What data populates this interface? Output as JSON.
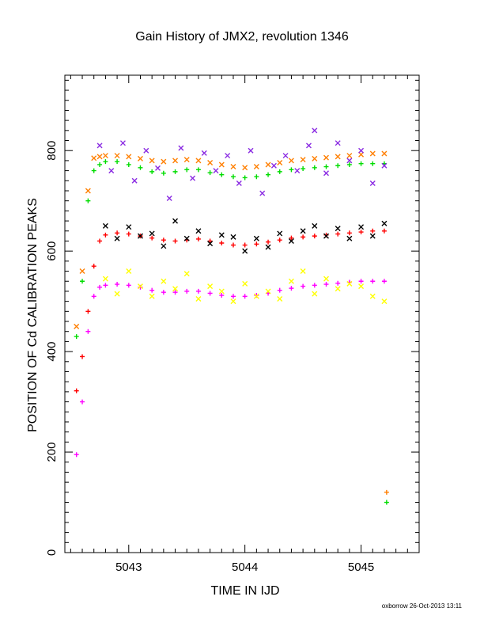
{
  "chart_data": {
    "type": "scatter",
    "title": "Gain History of JMX2, revolution 1346",
    "xlabel": "TIME IN IJD",
    "ylabel": "POSITION OF Cd CALIBRATION PEAKS",
    "xlim": [
      5042.45,
      5045.5
    ],
    "ylim": [
      0,
      950
    ],
    "xticks": [
      5043,
      5044,
      5045
    ],
    "yticks": [
      0,
      200,
      400,
      600,
      800
    ],
    "grid": false,
    "legend": "none",
    "series": [
      {
        "color": "#ff7f00",
        "marker": "x",
        "x": [
          5042.55,
          5042.6,
          5042.65,
          5042.7,
          5042.75,
          5042.8,
          5042.9,
          5043.0,
          5043.1,
          5043.2,
          5043.3,
          5043.4,
          5043.5,
          5043.6,
          5043.7,
          5043.8,
          5043.9,
          5044.0,
          5044.1,
          5044.2,
          5044.3,
          5044.4,
          5044.5,
          5044.6,
          5044.7,
          5044.8,
          5044.9,
          5045.0,
          5045.1,
          5045.2
        ],
        "values": [
          450,
          560,
          720,
          785,
          788,
          790,
          790,
          788,
          784,
          780,
          778,
          780,
          782,
          780,
          776,
          772,
          768,
          766,
          768,
          772,
          776,
          780,
          782,
          784,
          786,
          788,
          790,
          792,
          794,
          794
        ],
        "outliers": [
          {
            "x": 5045.22,
            "y": 120
          }
        ]
      },
      {
        "color": "#00dd00",
        "marker": "+",
        "x": [
          5042.55,
          5042.6,
          5042.65,
          5042.7,
          5042.75,
          5042.8,
          5042.9,
          5043.0,
          5043.1,
          5043.2,
          5043.3,
          5043.4,
          5043.5,
          5043.6,
          5043.7,
          5043.8,
          5043.9,
          5044.0,
          5044.1,
          5044.2,
          5044.3,
          5044.4,
          5044.5,
          5044.6,
          5044.7,
          5044.8,
          5044.9,
          5045.0,
          5045.1,
          5045.2
        ],
        "values": [
          430,
          540,
          700,
          760,
          772,
          778,
          778,
          772,
          766,
          758,
          755,
          758,
          762,
          762,
          756,
          752,
          748,
          746,
          748,
          752,
          758,
          762,
          764,
          766,
          768,
          770,
          772,
          774,
          774,
          774
        ],
        "outliers": [
          {
            "x": 5045.22,
            "y": 100
          }
        ]
      },
      {
        "color": "#ff0000",
        "marker": "+",
        "x": [
          5042.55,
          5042.6,
          5042.65,
          5042.7,
          5042.75,
          5042.8,
          5042.9,
          5043.0,
          5043.1,
          5043.2,
          5043.3,
          5043.4,
          5043.5,
          5043.6,
          5043.7,
          5043.8,
          5043.9,
          5044.0,
          5044.1,
          5044.2,
          5044.3,
          5044.4,
          5044.5,
          5044.6,
          5044.7,
          5044.8,
          5044.9,
          5045.0,
          5045.1,
          5045.2
        ],
        "values": [
          322,
          390,
          480,
          570,
          620,
          632,
          636,
          634,
          630,
          626,
          622,
          620,
          622,
          624,
          620,
          616,
          612,
          612,
          614,
          618,
          622,
          626,
          628,
          630,
          632,
          634,
          636,
          638,
          640,
          640
        ]
      },
      {
        "color": "#ff00ff",
        "marker": "+",
        "x": [
          5042.55,
          5042.6,
          5042.65,
          5042.7,
          5042.75,
          5042.8,
          5042.9,
          5043.0,
          5043.1,
          5043.2,
          5043.3,
          5043.4,
          5043.5,
          5043.6,
          5043.7,
          5043.8,
          5043.9,
          5044.0,
          5044.1,
          5044.2,
          5044.3,
          5044.4,
          5044.5,
          5044.6,
          5044.7,
          5044.8,
          5044.9,
          5045.0,
          5045.1,
          5045.2
        ],
        "values": [
          195,
          300,
          440,
          510,
          528,
          532,
          534,
          532,
          528,
          522,
          518,
          518,
          520,
          520,
          516,
          512,
          510,
          510,
          512,
          516,
          522,
          526,
          530,
          532,
          534,
          536,
          538,
          540,
          540,
          540
        ]
      },
      {
        "color": "#000000",
        "marker": "x",
        "x": [
          5042.8,
          5042.9,
          5043.0,
          5043.1,
          5043.2,
          5043.3,
          5043.4,
          5043.5,
          5043.6,
          5043.7,
          5043.8,
          5043.9,
          5044.0,
          5044.1,
          5044.2,
          5044.3,
          5044.4,
          5044.5,
          5044.6,
          5044.7,
          5044.8,
          5044.9,
          5045.0,
          5045.1,
          5045.2
        ],
        "values": [
          650,
          625,
          648,
          630,
          635,
          610,
          660,
          625,
          640,
          615,
          632,
          628,
          600,
          625,
          608,
          635,
          620,
          640,
          650,
          630,
          645,
          625,
          648,
          630,
          655
        ]
      },
      {
        "color": "#ffff00",
        "marker": "x",
        "x": [
          5042.8,
          5042.9,
          5043.0,
          5043.1,
          5043.2,
          5043.3,
          5043.4,
          5043.5,
          5043.6,
          5043.7,
          5043.8,
          5043.9,
          5044.0,
          5044.1,
          5044.2,
          5044.3,
          5044.4,
          5044.5,
          5044.6,
          5044.7,
          5044.8,
          5044.9,
          5045.0,
          5045.1,
          5045.2
        ],
        "values": [
          545,
          515,
          560,
          530,
          510,
          540,
          525,
          555,
          505,
          530,
          520,
          500,
          535,
          510,
          520,
          505,
          540,
          560,
          515,
          545,
          525,
          535,
          530,
          510,
          500
        ]
      },
      {
        "color": "#8a2be2",
        "marker": "x",
        "x": [
          5042.75,
          5042.85,
          5042.95,
          5043.05,
          5043.15,
          5043.25,
          5043.35,
          5043.45,
          5043.55,
          5043.65,
          5043.75,
          5043.85,
          5043.95,
          5044.05,
          5044.15,
          5044.25,
          5044.35,
          5044.45,
          5044.55,
          5044.6,
          5044.7,
          5044.8,
          5044.9,
          5045.0,
          5045.1,
          5045.2
        ],
        "values": [
          810,
          760,
          815,
          740,
          800,
          765,
          705,
          805,
          745,
          795,
          760,
          790,
          735,
          800,
          715,
          770,
          790,
          760,
          810,
          840,
          755,
          815,
          780,
          800,
          735,
          770
        ]
      }
    ]
  },
  "footer": "oxborrow 26-Oct-2013 13:11"
}
